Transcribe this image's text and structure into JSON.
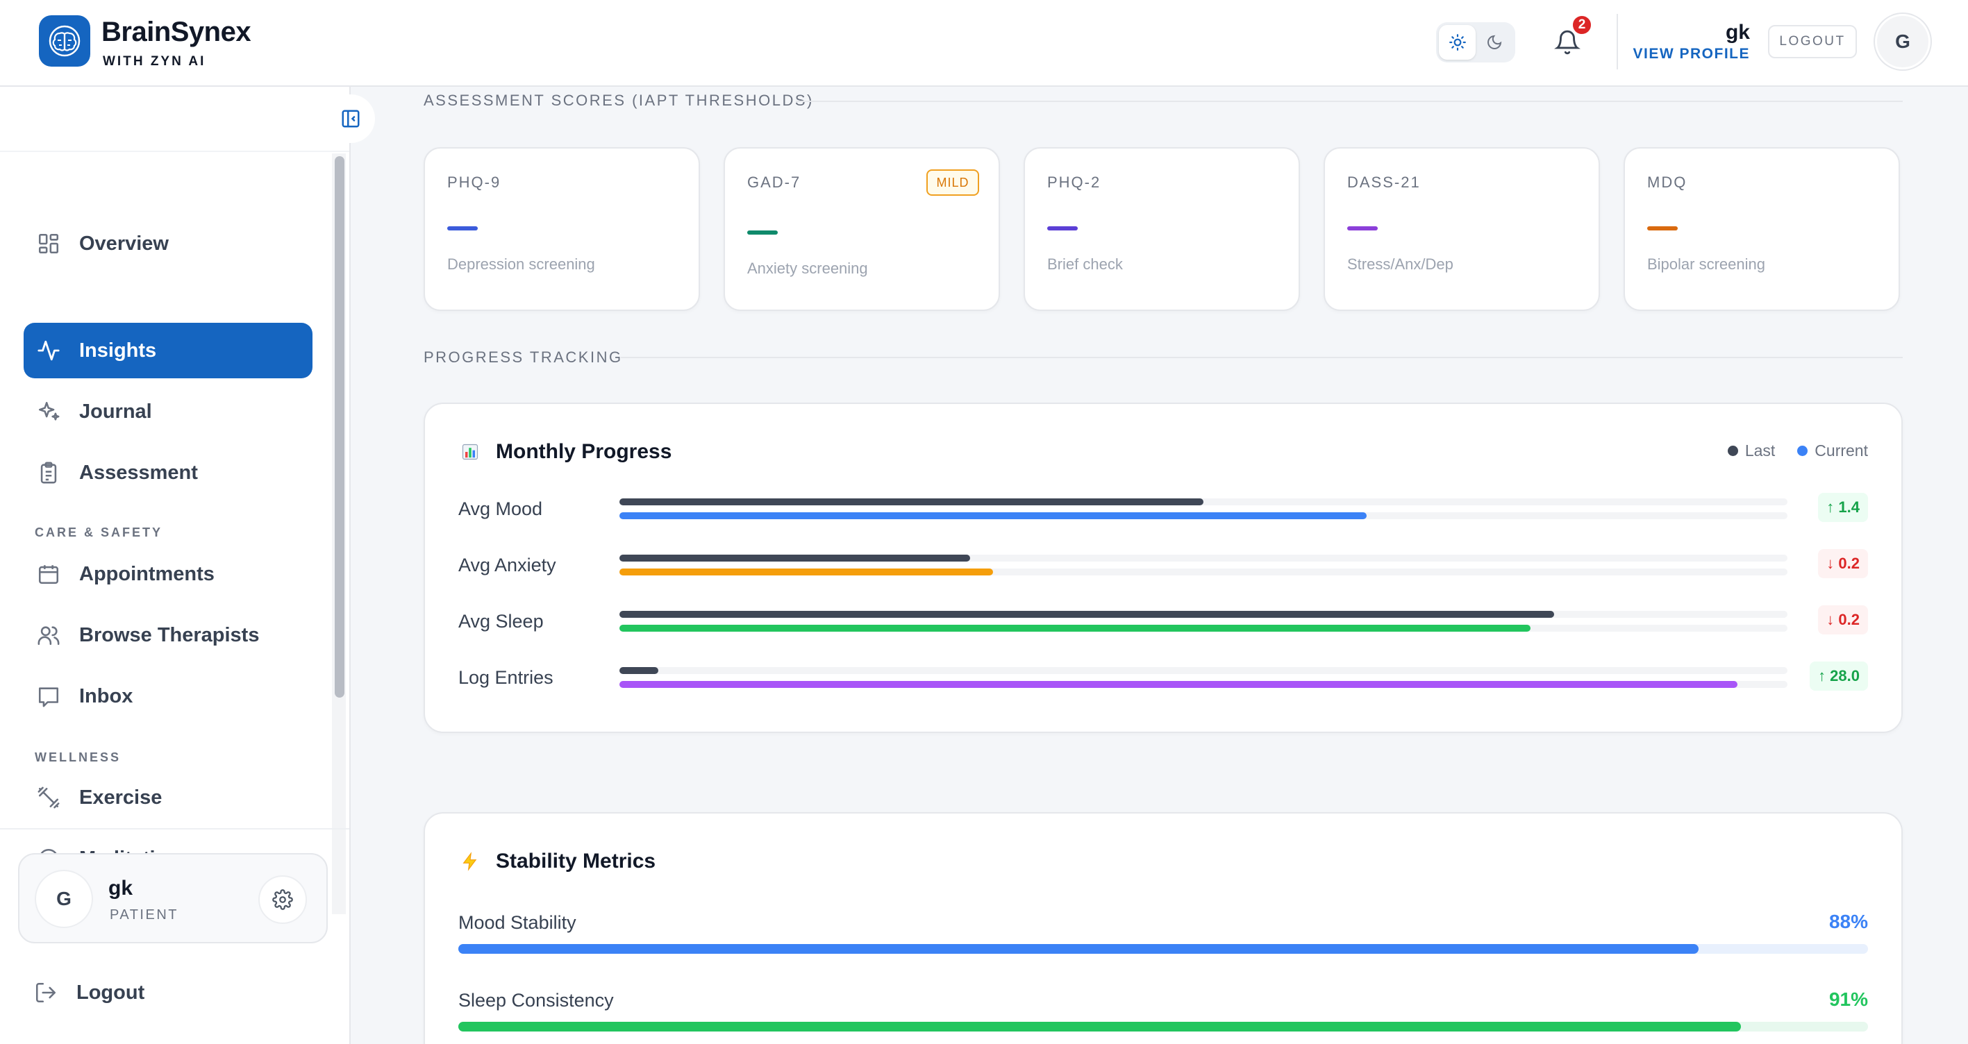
{
  "header": {
    "brand": "BrainSynex",
    "brand_sub": "WITH ZYN AI",
    "notification_count": "2",
    "user_name": "gk",
    "view_profile": "VIEW PROFILE",
    "logout": "LOGOUT",
    "avatar_initial": "G"
  },
  "sidebar": {
    "items": [
      {
        "label": "Overview",
        "icon": "grid-icon"
      },
      {
        "label": "Insights",
        "icon": "activity-icon",
        "active": true
      },
      {
        "label": "Journal",
        "icon": "sparkles-icon"
      },
      {
        "label": "Assessment",
        "icon": "clipboard-icon"
      }
    ],
    "section_care": "CARE & SAFETY",
    "care_items": [
      {
        "label": "Appointments",
        "icon": "calendar-icon"
      },
      {
        "label": "Browse Therapists",
        "icon": "users-icon"
      },
      {
        "label": "Inbox",
        "icon": "message-icon"
      }
    ],
    "section_wellness": "WELLNESS",
    "wellness_items": [
      {
        "label": "Exercise",
        "icon": "dumbbell-icon"
      },
      {
        "label": "Meditation",
        "icon": "headphones-icon"
      }
    ],
    "user": {
      "initial": "G",
      "name": "gk",
      "role": "PATIENT"
    },
    "logout": "Logout"
  },
  "assessment": {
    "title": "ASSESSMENT SCORES (IAPT THRESHOLDS)",
    "cards": [
      {
        "name": "PHQ-9",
        "desc": "Depression screening",
        "color": "#3b5bdb",
        "badge": ""
      },
      {
        "name": "GAD-7",
        "desc": "Anxiety screening",
        "color": "#0f8a6b",
        "badge": "MILD"
      },
      {
        "name": "PHQ-2",
        "desc": "Brief check",
        "color": "#5b3fd6",
        "badge": ""
      },
      {
        "name": "DASS-21",
        "desc": "Stress/Anx/Dep",
        "color": "#8b3fd9",
        "badge": ""
      },
      {
        "name": "MDQ",
        "desc": "Bipolar screening",
        "color": "#d96a0f",
        "badge": ""
      }
    ]
  },
  "progress": {
    "section_title": "PROGRESS TRACKING",
    "panel_title": "Monthly Progress",
    "legend_last": "Last",
    "legend_current": "Current",
    "last_color": "#3f4756",
    "metrics": [
      {
        "label": "Avg Mood",
        "last": 0.5,
        "current": 0.64,
        "color": "#3b82f6",
        "delta": "↑ 1.4",
        "dir": "up"
      },
      {
        "label": "Avg Anxiety",
        "last": 0.3,
        "current": 0.32,
        "color": "#f59e0b",
        "delta": "↓ 0.2",
        "dir": "down"
      },
      {
        "label": "Avg Sleep",
        "last": 0.8,
        "current": 0.78,
        "color": "#22c55e",
        "delta": "↓ 0.2",
        "dir": "down"
      },
      {
        "label": "Log Entries",
        "last": 0.033,
        "current": 0.957,
        "color": "#a855f7",
        "delta": "↑ 28.0",
        "dir": "up"
      }
    ]
  },
  "stability": {
    "panel_title": "Stability Metrics",
    "metrics": [
      {
        "label": "Mood Stability",
        "value": "88%",
        "fraction": 0.88,
        "color": "#3b82f6",
        "track": "#e8f0fd"
      },
      {
        "label": "Sleep Consistency",
        "value": "91%",
        "fraction": 0.91,
        "color": "#22c55e",
        "track": "#e7f8ee"
      }
    ]
  }
}
